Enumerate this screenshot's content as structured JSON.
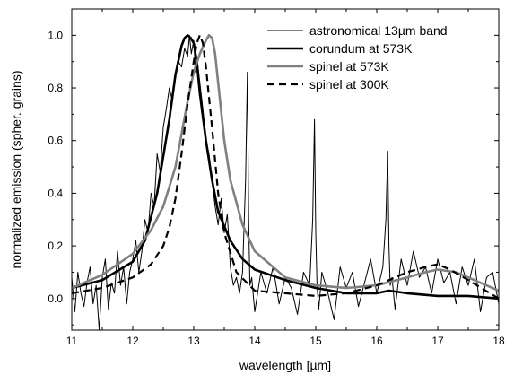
{
  "chart_data": {
    "type": "line",
    "title": "",
    "xlabel": "wavelength [µm]",
    "ylabel": "normalized emission (spher. grains)",
    "xlim": [
      11,
      18
    ],
    "ylim": [
      -0.12,
      1.1
    ],
    "x_ticks": [
      11,
      12,
      13,
      14,
      15,
      16,
      17,
      18
    ],
    "x_tick_labels": [
      "11",
      "12",
      "13",
      "14",
      "15",
      "16",
      "17",
      "18"
    ],
    "y_ticks": [
      0.0,
      0.2,
      0.4,
      0.6,
      0.8,
      1.0
    ],
    "y_tick_labels": [
      "0.0",
      "0.2",
      "0.4",
      "0.6",
      "0.8",
      "1.0"
    ],
    "legend_position": "top-right",
    "grid": false,
    "series": [
      {
        "name": "astronomical 13µm band",
        "style": {
          "color": "#000000",
          "width": 1,
          "dash": ""
        },
        "x": [
          11.0,
          11.05,
          11.1,
          11.15,
          11.2,
          11.25,
          11.3,
          11.35,
          11.4,
          11.45,
          11.5,
          11.55,
          11.6,
          11.65,
          11.7,
          11.75,
          11.8,
          11.85,
          11.9,
          11.95,
          12.0,
          12.05,
          12.1,
          12.15,
          12.2,
          12.25,
          12.3,
          12.35,
          12.4,
          12.45,
          12.5,
          12.55,
          12.6,
          12.65,
          12.7,
          12.75,
          12.8,
          12.85,
          12.9,
          12.93,
          12.96,
          13.0,
          13.03,
          13.06,
          13.1,
          13.15,
          13.2,
          13.25,
          13.3,
          13.35,
          13.4,
          13.45,
          13.5,
          13.55,
          13.6,
          13.65,
          13.7,
          13.75,
          13.8,
          13.85,
          13.88,
          13.9,
          13.92,
          13.95,
          14.0,
          14.1,
          14.2,
          14.3,
          14.4,
          14.5,
          14.6,
          14.7,
          14.8,
          14.9,
          14.95,
          14.98,
          15.0,
          15.02,
          15.05,
          15.1,
          15.2,
          15.3,
          15.4,
          15.5,
          15.6,
          15.7,
          15.8,
          15.9,
          16.0,
          16.1,
          16.15,
          16.18,
          16.2,
          16.22,
          16.25,
          16.3,
          16.4,
          16.5,
          16.6,
          16.7,
          16.8,
          16.9,
          17.0,
          17.1,
          17.2,
          17.3,
          17.4,
          17.5,
          17.6,
          17.7,
          17.8,
          17.9,
          18.0
        ],
        "y": [
          0.08,
          -0.05,
          0.1,
          0.02,
          -0.03,
          0.06,
          0.12,
          -0.02,
          0.05,
          -0.12,
          0.08,
          0.15,
          -0.04,
          0.06,
          0.02,
          0.18,
          0.05,
          0.12,
          -0.02,
          0.1,
          0.15,
          0.22,
          0.1,
          0.18,
          0.3,
          0.25,
          0.4,
          0.35,
          0.55,
          0.48,
          0.65,
          0.72,
          0.8,
          0.75,
          0.85,
          0.9,
          0.88,
          0.95,
          0.92,
          1.0,
          0.93,
          0.98,
          0.86,
          0.9,
          0.82,
          0.72,
          0.6,
          0.55,
          0.45,
          0.35,
          0.28,
          0.38,
          0.25,
          0.32,
          0.12,
          0.05,
          0.08,
          0.02,
          0.1,
          0.45,
          0.86,
          0.3,
          0.05,
          0.08,
          -0.05,
          0.1,
          0.02,
          0.12,
          -0.02,
          0.08,
          0.04,
          -0.06,
          0.1,
          0.05,
          0.3,
          0.68,
          0.25,
          0.05,
          -0.04,
          0.1,
          0.02,
          -0.08,
          0.12,
          0.04,
          0.1,
          -0.03,
          0.06,
          0.15,
          0.02,
          0.12,
          0.3,
          0.56,
          0.2,
          0.05,
          0.08,
          -0.04,
          0.15,
          0.05,
          0.18,
          0.08,
          0.12,
          0.02,
          0.15,
          0.06,
          0.1,
          -0.02,
          0.12,
          0.05,
          0.15,
          -0.05,
          0.08,
          0.1,
          -0.02
        ]
      },
      {
        "name": "corundum at 573K",
        "style": {
          "color": "#000000",
          "width": 2.6,
          "dash": ""
        },
        "x": [
          11.0,
          11.5,
          12.0,
          12.2,
          12.4,
          12.6,
          12.7,
          12.8,
          12.85,
          12.9,
          12.95,
          13.0,
          13.05,
          13.1,
          13.2,
          13.3,
          13.4,
          13.6,
          13.8,
          14.0,
          14.5,
          15.0,
          15.5,
          16.0,
          16.2,
          16.5,
          17.0,
          17.5,
          18.0
        ],
        "y": [
          0.04,
          0.07,
          0.14,
          0.22,
          0.4,
          0.68,
          0.85,
          0.96,
          0.99,
          1.0,
          0.99,
          0.97,
          0.9,
          0.78,
          0.6,
          0.45,
          0.33,
          0.22,
          0.15,
          0.11,
          0.07,
          0.04,
          0.02,
          0.02,
          0.03,
          0.02,
          0.01,
          0.01,
          0.0
        ]
      },
      {
        "name": "spinel at 573K",
        "style": {
          "color": "#808080",
          "width": 2.6,
          "dash": ""
        },
        "x": [
          11.0,
          11.5,
          12.0,
          12.3,
          12.5,
          12.7,
          12.9,
          13.0,
          13.1,
          13.2,
          13.25,
          13.3,
          13.35,
          13.4,
          13.5,
          13.6,
          13.8,
          14.0,
          14.5,
          15.0,
          15.5,
          16.0,
          16.5,
          16.8,
          17.0,
          17.3,
          17.6,
          18.0
        ],
        "y": [
          0.04,
          0.09,
          0.17,
          0.26,
          0.35,
          0.5,
          0.75,
          0.86,
          0.93,
          0.98,
          1.0,
          0.99,
          0.93,
          0.82,
          0.6,
          0.45,
          0.28,
          0.18,
          0.08,
          0.05,
          0.04,
          0.05,
          0.08,
          0.1,
          0.11,
          0.1,
          0.07,
          0.03
        ]
      },
      {
        "name": "spinel at 300K",
        "style": {
          "color": "#000000",
          "width": 2.2,
          "dash": "8,5"
        },
        "x": [
          11.0,
          11.5,
          12.0,
          12.3,
          12.5,
          12.6,
          12.7,
          12.8,
          12.9,
          13.0,
          13.05,
          13.1,
          13.15,
          13.2,
          13.3,
          13.4,
          13.5,
          13.7,
          14.0,
          14.5,
          15.0,
          15.5,
          16.0,
          16.5,
          16.8,
          17.0,
          17.2,
          17.5,
          18.0
        ],
        "y": [
          0.02,
          0.04,
          0.08,
          0.13,
          0.2,
          0.27,
          0.38,
          0.55,
          0.74,
          0.9,
          0.97,
          1.0,
          0.97,
          0.88,
          0.65,
          0.4,
          0.25,
          0.1,
          0.03,
          0.02,
          0.01,
          0.02,
          0.05,
          0.1,
          0.12,
          0.13,
          0.11,
          0.07,
          0.0
        ]
      }
    ]
  }
}
